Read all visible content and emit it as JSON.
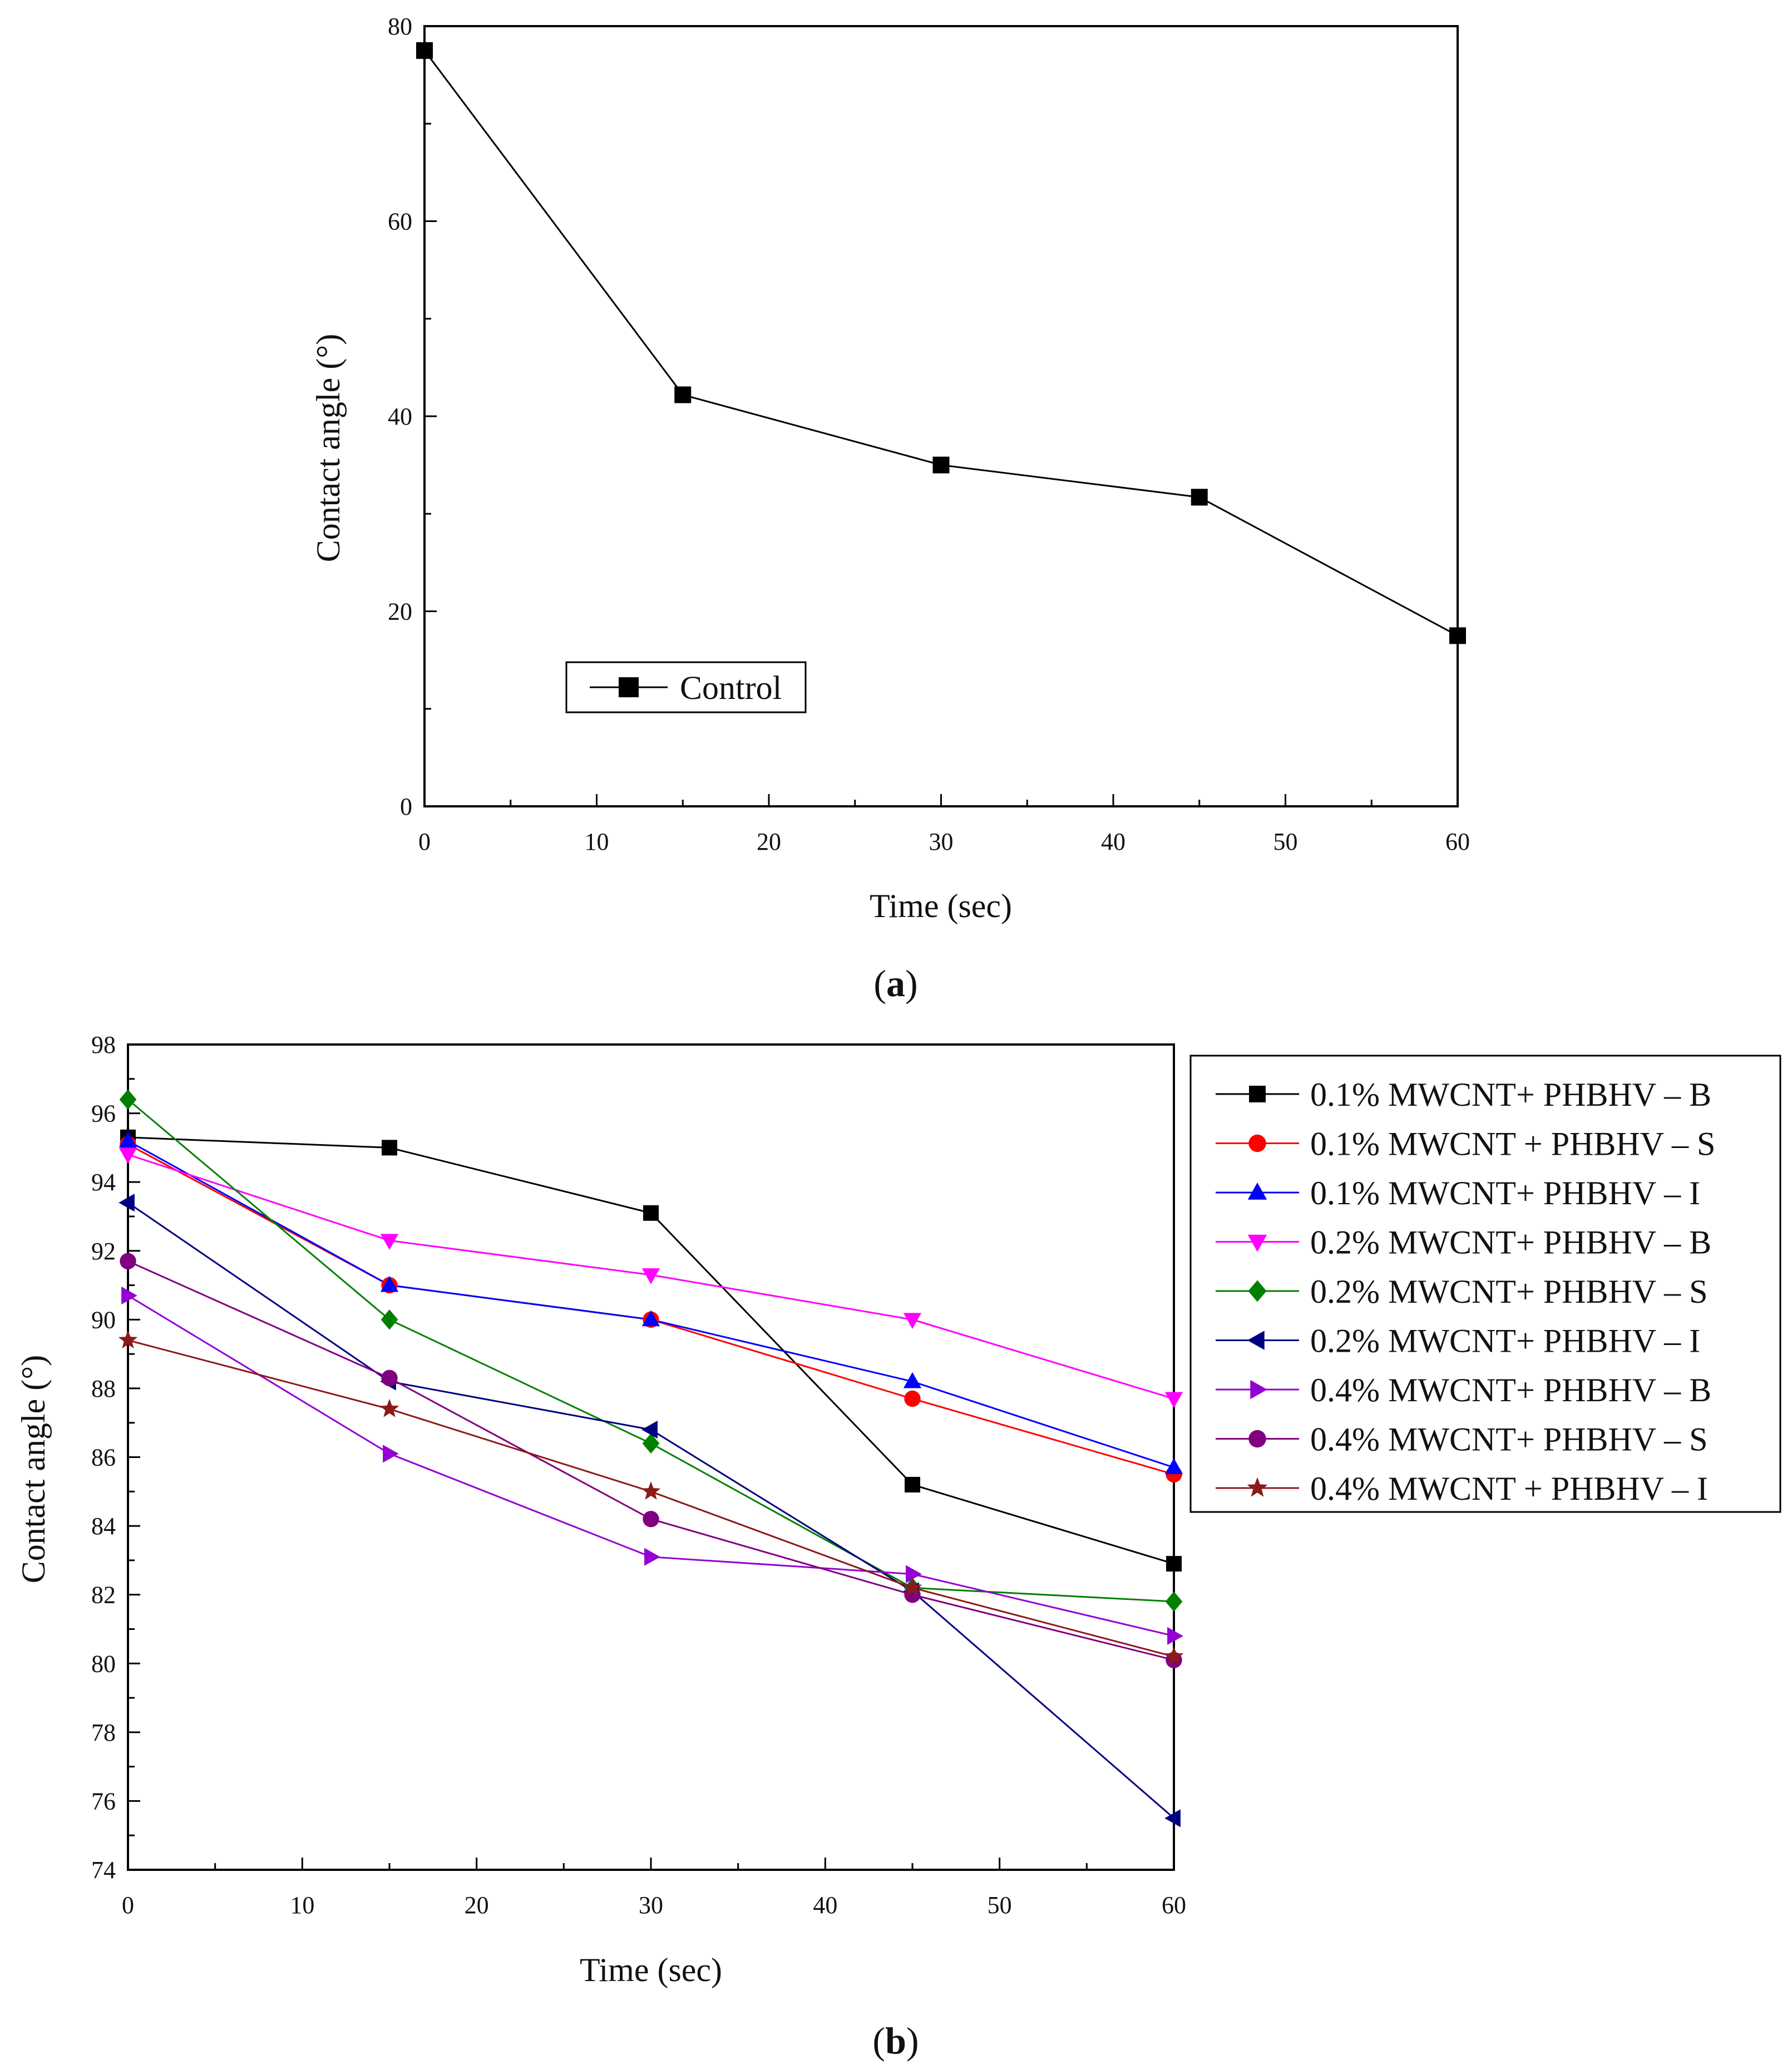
{
  "chart_data": [
    {
      "type": "line",
      "panel_label": "a",
      "title": "",
      "xlabel": "Time (sec)",
      "ylabel": "Contact angle (°)",
      "xlim": [
        0,
        60
      ],
      "ylim": [
        0,
        80
      ],
      "xticks": [
        0,
        10,
        20,
        30,
        40,
        50,
        60
      ],
      "yticks": [
        0,
        20,
        40,
        60,
        80
      ],
      "grid": false,
      "legend_position": "bottom-left",
      "series": [
        {
          "name": "Control",
          "color": "#000000",
          "marker": "square",
          "x": [
            0,
            15,
            30,
            45,
            60
          ],
          "y": [
            77.5,
            42.2,
            35.0,
            31.7,
            17.5
          ]
        }
      ]
    },
    {
      "type": "line",
      "panel_label": "b",
      "title": "",
      "xlabel": "Time (sec)",
      "ylabel": "Contact angle (°)",
      "xlim": [
        0,
        60
      ],
      "ylim": [
        74,
        98
      ],
      "xticks": [
        0,
        10,
        20,
        30,
        40,
        50,
        60
      ],
      "yticks": [
        74,
        76,
        78,
        80,
        82,
        84,
        86,
        88,
        90,
        92,
        94,
        96,
        98
      ],
      "grid": false,
      "legend_position": "outside-right",
      "series": [
        {
          "name": "0.1% MWCNT+ PHBHV – B",
          "color": "#000000",
          "marker": "square",
          "x": [
            0,
            15,
            30,
            45,
            60
          ],
          "y": [
            95.3,
            95.0,
            93.1,
            85.2,
            82.9
          ]
        },
        {
          "name": "0.1% MWCNT + PHBHV – S",
          "color": "#ff0000",
          "marker": "circle",
          "x": [
            0,
            15,
            30,
            45,
            60
          ],
          "y": [
            95.1,
            91.0,
            90.0,
            87.7,
            85.5
          ]
        },
        {
          "name": "0.1% MWCNT+ PHBHV – I",
          "color": "#0000ff",
          "marker": "triangle-up",
          "x": [
            0,
            15,
            30,
            45,
            60
          ],
          "y": [
            95.2,
            91.0,
            90.0,
            88.2,
            85.7
          ]
        },
        {
          "name": "0.2% MWCNT+ PHBHV – B",
          "color": "#ff00ff",
          "marker": "triangle-down",
          "x": [
            0,
            15,
            30,
            45,
            60
          ],
          "y": [
            94.8,
            92.3,
            91.3,
            90.0,
            87.7
          ]
        },
        {
          "name": "0.2% MWCNT+ PHBHV – S",
          "color": "#008000",
          "marker": "diamond",
          "x": [
            0,
            15,
            30,
            45,
            60
          ],
          "y": [
            96.4,
            90.0,
            86.4,
            82.2,
            81.8
          ]
        },
        {
          "name": "0.2% MWCNT+ PHBHV – I",
          "color": "#000080",
          "marker": "triangle-left",
          "x": [
            0,
            15,
            30,
            45,
            60
          ],
          "y": [
            93.4,
            88.2,
            86.8,
            82.1,
            75.5
          ]
        },
        {
          "name": "0.4% MWCNT+ PHBHV – B",
          "color": "#9400d3",
          "marker": "triangle-right",
          "x": [
            0,
            15,
            30,
            45,
            60
          ],
          "y": [
            90.7,
            86.1,
            83.1,
            82.6,
            80.8
          ]
        },
        {
          "name": "0.4% MWCNT+ PHBHV – S",
          "color": "#800080",
          "marker": "circle",
          "x": [
            0,
            15,
            30,
            45,
            60
          ],
          "y": [
            91.7,
            88.3,
            84.2,
            82.0,
            80.1
          ]
        },
        {
          "name": "0.4% MWCNT + PHBHV – I",
          "color": "#8b1a1a",
          "marker": "star",
          "x": [
            0,
            15,
            30,
            45,
            60
          ],
          "y": [
            89.4,
            87.4,
            85.0,
            82.2,
            80.2
          ]
        }
      ]
    }
  ]
}
